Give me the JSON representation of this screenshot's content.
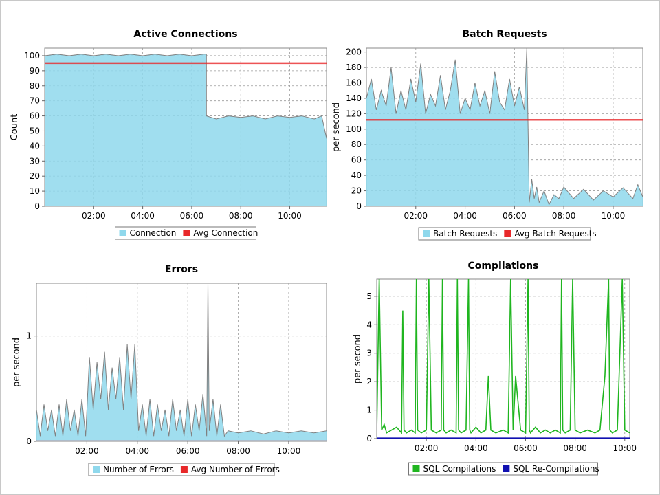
{
  "chart_data": [
    {
      "type": "area",
      "title": "Active Connections",
      "xlabel": "",
      "ylabel": "Count",
      "xlim": [
        0,
        11.5
      ],
      "ylim": [
        0,
        105
      ],
      "x_ticks": [
        {
          "v": 2,
          "label": "02:00"
        },
        {
          "v": 4,
          "label": "04:00"
        },
        {
          "v": 6,
          "label": "06:00"
        },
        {
          "v": 8,
          "label": "08:00"
        },
        {
          "v": 10,
          "label": "10:00"
        }
      ],
      "y_ticks": [
        {
          "v": 0,
          "label": "0"
        },
        {
          "v": 10,
          "label": "10"
        },
        {
          "v": 20,
          "label": "20"
        },
        {
          "v": 30,
          "label": "30"
        },
        {
          "v": 40,
          "label": "40"
        },
        {
          "v": 50,
          "label": "50"
        },
        {
          "v": 60,
          "label": "60"
        },
        {
          "v": 70,
          "label": "70"
        },
        {
          "v": 80,
          "label": "80"
        },
        {
          "v": 90,
          "label": "90"
        },
        {
          "v": 100,
          "label": "100"
        }
      ],
      "grid": true,
      "legend_position": "bottom-center",
      "series": [
        {
          "name": "Connection",
          "kind": "area",
          "color": "#8fd8ec",
          "x": [
            0,
            0.5,
            1,
            1.5,
            2,
            2.5,
            3,
            3.5,
            4,
            4.5,
            5,
            5.5,
            6,
            6.5,
            6.6,
            6.6,
            7,
            7.5,
            8,
            8.5,
            9,
            9.5,
            10,
            10.5,
            11,
            11.3,
            11.5
          ],
          "y": [
            100,
            101,
            100,
            101,
            100,
            101,
            100,
            101,
            100,
            101,
            100,
            101,
            100,
            101,
            101,
            60,
            58,
            60,
            59,
            60,
            58,
            60,
            59,
            60,
            58,
            60,
            45
          ]
        },
        {
          "name": "Avg Connection",
          "kind": "line",
          "color": "#e8282a",
          "x": [
            0,
            11.5
          ],
          "y": [
            95,
            95
          ]
        }
      ]
    },
    {
      "type": "area",
      "title": "Batch Requests",
      "xlabel": "",
      "ylabel": "per second",
      "xlim": [
        0,
        11.2
      ],
      "ylim": [
        0,
        205
      ],
      "x_ticks": [
        {
          "v": 2,
          "label": "02:00"
        },
        {
          "v": 4,
          "label": "04:00"
        },
        {
          "v": 6,
          "label": "06:00"
        },
        {
          "v": 8,
          "label": "08:00"
        },
        {
          "v": 10,
          "label": "10:00"
        }
      ],
      "y_ticks": [
        {
          "v": 0,
          "label": "0"
        },
        {
          "v": 20,
          "label": "20"
        },
        {
          "v": 40,
          "label": "40"
        },
        {
          "v": 60,
          "label": "60"
        },
        {
          "v": 80,
          "label": "80"
        },
        {
          "v": 100,
          "label": "100"
        },
        {
          "v": 120,
          "label": "120"
        },
        {
          "v": 140,
          "label": "140"
        },
        {
          "v": 160,
          "label": "160"
        },
        {
          "v": 180,
          "label": "180"
        },
        {
          "v": 200,
          "label": "200"
        }
      ],
      "grid": true,
      "legend_position": "bottom-center",
      "series": [
        {
          "name": "Batch Requests",
          "kind": "area",
          "color": "#8fd8ec",
          "x": [
            0,
            0.2,
            0.4,
            0.6,
            0.8,
            1.0,
            1.2,
            1.4,
            1.6,
            1.8,
            2.0,
            2.2,
            2.4,
            2.6,
            2.8,
            3.0,
            3.2,
            3.4,
            3.6,
            3.8,
            4.0,
            4.2,
            4.4,
            4.6,
            4.8,
            5.0,
            5.2,
            5.4,
            5.6,
            5.8,
            6.0,
            6.2,
            6.4,
            6.5,
            6.6,
            6.7,
            6.8,
            6.9,
            7.0,
            7.2,
            7.4,
            7.6,
            7.8,
            8.0,
            8.4,
            8.8,
            9.2,
            9.6,
            10.0,
            10.4,
            10.8,
            11.0,
            11.2
          ],
          "y": [
            140,
            165,
            125,
            150,
            130,
            180,
            120,
            150,
            125,
            165,
            135,
            185,
            120,
            145,
            130,
            170,
            125,
            150,
            190,
            120,
            140,
            125,
            160,
            130,
            150,
            120,
            175,
            135,
            125,
            165,
            130,
            155,
            125,
            205,
            5,
            35,
            10,
            25,
            5,
            20,
            2,
            15,
            10,
            25,
            10,
            22,
            8,
            20,
            12,
            24,
            10,
            28,
            12
          ]
        },
        {
          "name": "Avg Batch Requests",
          "kind": "line",
          "color": "#e8282a",
          "x": [
            0,
            11.2
          ],
          "y": [
            112,
            112
          ]
        }
      ]
    },
    {
      "type": "area",
      "title": "Errors",
      "xlabel": "",
      "ylabel": "per second",
      "xlim": [
        0,
        11.5
      ],
      "ylim": [
        0,
        1.5
      ],
      "x_ticks": [
        {
          "v": 2,
          "label": "02:00"
        },
        {
          "v": 4,
          "label": "04:00"
        },
        {
          "v": 6,
          "label": "06:00"
        },
        {
          "v": 8,
          "label": "08:00"
        },
        {
          "v": 10,
          "label": "10:00"
        }
      ],
      "y_ticks": [
        {
          "v": 0,
          "label": "0"
        },
        {
          "v": 1,
          "label": "1"
        }
      ],
      "grid": true,
      "legend_position": "bottom-center",
      "series": [
        {
          "name": "Number of Errors",
          "kind": "area",
          "color": "#8fd8ec",
          "x": [
            0,
            0.15,
            0.3,
            0.45,
            0.6,
            0.75,
            0.9,
            1.05,
            1.2,
            1.35,
            1.5,
            1.65,
            1.8,
            1.95,
            2.1,
            2.25,
            2.4,
            2.55,
            2.7,
            2.85,
            3.0,
            3.15,
            3.3,
            3.45,
            3.6,
            3.75,
            3.9,
            4.05,
            4.2,
            4.35,
            4.5,
            4.65,
            4.8,
            4.95,
            5.1,
            5.25,
            5.4,
            5.55,
            5.7,
            5.85,
            6.0,
            6.15,
            6.3,
            6.45,
            6.6,
            6.75,
            6.8,
            6.85,
            7.0,
            7.15,
            7.3,
            7.45,
            7.6,
            8.0,
            8.5,
            9.0,
            9.5,
            10.0,
            10.5,
            11.0,
            11.5
          ],
          "y": [
            0.3,
            0.05,
            0.35,
            0.1,
            0.3,
            0.05,
            0.35,
            0.05,
            0.4,
            0.1,
            0.3,
            0.05,
            0.4,
            0.05,
            0.8,
            0.3,
            0.75,
            0.4,
            0.85,
            0.3,
            0.7,
            0.4,
            0.8,
            0.3,
            0.92,
            0.4,
            0.92,
            0.1,
            0.35,
            0.05,
            0.4,
            0.05,
            0.35,
            0.1,
            0.3,
            0.05,
            0.4,
            0.1,
            0.3,
            0.05,
            0.4,
            0.05,
            0.35,
            0.1,
            0.45,
            0.05,
            1.5,
            0.1,
            0.4,
            0.05,
            0.35,
            0.05,
            0.1,
            0.08,
            0.1,
            0.07,
            0.1,
            0.08,
            0.1,
            0.08,
            0.1
          ]
        },
        {
          "name": "Avg Number of Errors",
          "kind": "line",
          "color": "#e8282a",
          "x": [
            0,
            11.5
          ],
          "y": [
            0,
            0
          ]
        }
      ]
    },
    {
      "type": "line",
      "title": "Compilations",
      "xlabel": "",
      "ylabel": "per second",
      "xlim": [
        0,
        10.2
      ],
      "ylim": [
        0,
        5.6
      ],
      "x_ticks": [
        {
          "v": 2,
          "label": "02:00"
        },
        {
          "v": 4,
          "label": "04:00"
        },
        {
          "v": 6,
          "label": "06:00"
        },
        {
          "v": 8,
          "label": "08:00"
        },
        {
          "v": 10,
          "label": "10:00"
        }
      ],
      "y_ticks": [
        {
          "v": 0,
          "label": "0"
        },
        {
          "v": 1,
          "label": "1"
        },
        {
          "v": 2,
          "label": "2"
        },
        {
          "v": 3,
          "label": "3"
        },
        {
          "v": 4,
          "label": "4"
        },
        {
          "v": 5,
          "label": "5"
        }
      ],
      "grid": true,
      "legend_position": "bottom-center",
      "series": [
        {
          "name": "SQL Compilations",
          "kind": "line",
          "color": "#1fb51f",
          "x": [
            0,
            0.1,
            0.2,
            0.3,
            0.4,
            0.6,
            0.8,
            1.0,
            1.05,
            1.1,
            1.2,
            1.4,
            1.55,
            1.6,
            1.65,
            1.8,
            2.0,
            2.1,
            2.2,
            2.4,
            2.6,
            2.65,
            2.7,
            2.8,
            3.0,
            3.2,
            3.25,
            3.3,
            3.4,
            3.6,
            3.7,
            3.75,
            3.8,
            4.0,
            4.2,
            4.4,
            4.5,
            4.6,
            4.8,
            5.1,
            5.3,
            5.4,
            5.5,
            5.6,
            5.8,
            6.0,
            6.1,
            6.15,
            6.2,
            6.4,
            6.6,
            6.8,
            7.0,
            7.2,
            7.4,
            7.45,
            7.5,
            7.6,
            7.8,
            7.9,
            8.0,
            8.2,
            8.5,
            8.8,
            9.0,
            9.2,
            9.35,
            9.4,
            9.5,
            9.7,
            9.9,
            10.0,
            10.2
          ],
          "y": [
            0.2,
            5.6,
            0.3,
            0.5,
            0.2,
            0.3,
            0.4,
            0.2,
            4.5,
            0.3,
            0.2,
            0.3,
            0.2,
            5.6,
            0.3,
            0.2,
            0.3,
            5.6,
            0.3,
            0.2,
            0.3,
            5.6,
            0.3,
            0.2,
            0.3,
            0.2,
            5.6,
            0.3,
            0.2,
            0.3,
            5.6,
            0.3,
            0.2,
            0.4,
            0.2,
            0.3,
            2.2,
            0.3,
            0.2,
            0.3,
            0.2,
            5.6,
            0.3,
            2.2,
            0.3,
            0.2,
            5.6,
            0.3,
            0.2,
            0.4,
            0.2,
            0.3,
            0.2,
            0.3,
            0.2,
            5.6,
            0.3,
            0.2,
            0.3,
            5.6,
            0.3,
            0.2,
            0.3,
            0.2,
            0.3,
            2.2,
            5.6,
            0.3,
            0.2,
            0.3,
            5.6,
            0.3,
            0.2
          ]
        },
        {
          "name": "SQL Re-Compilations",
          "kind": "line",
          "color": "#1010b0",
          "x": [
            0,
            10.2
          ],
          "y": [
            0.02,
            0.02
          ]
        }
      ]
    }
  ]
}
